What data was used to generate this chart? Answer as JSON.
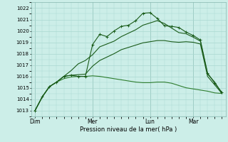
{
  "title": "",
  "xlabel": "Pression niveau de la mer( hPa )",
  "ylabel": "",
  "bg_color": "#cceee8",
  "grid_color": "#aad8d0",
  "line_color_dark": "#1a5c1a",
  "line_color_mid": "#2e7d2e",
  "ylim": [
    1012.5,
    1022.5
  ],
  "yticks": [
    1013,
    1014,
    1015,
    1016,
    1017,
    1018,
    1019,
    1020,
    1021,
    1022
  ],
  "xtick_labels": [
    "Dim",
    "Mer",
    "Lun",
    "Mar"
  ],
  "xtick_positions": [
    0,
    8,
    16,
    22
  ],
  "total_points": 27,
  "series1": [
    1013.0,
    1014.2,
    1015.1,
    1015.5,
    1016.0,
    1016.1,
    1016.0,
    1016.0,
    1018.8,
    1019.7,
    1019.5,
    1020.0,
    1020.4,
    1020.5,
    1020.9,
    1021.55,
    1021.6,
    1021.1,
    1020.45,
    1020.4,
    1020.3,
    1019.9,
    1019.6,
    1019.2,
    1016.3,
    1015.4,
    1014.6
  ],
  "series2": [
    1013.0,
    1014.2,
    1015.1,
    1015.5,
    1015.8,
    1015.95,
    1016.0,
    1016.0,
    1016.05,
    1016.0,
    1015.9,
    1015.8,
    1015.7,
    1015.6,
    1015.5,
    1015.45,
    1015.45,
    1015.5,
    1015.5,
    1015.4,
    1015.2,
    1015.0,
    1014.9,
    1014.8,
    1014.7,
    1014.55,
    1014.5
  ],
  "series3": [
    1013.0,
    1014.2,
    1015.1,
    1015.5,
    1016.0,
    1016.1,
    1016.15,
    1016.2,
    1016.9,
    1017.4,
    1017.7,
    1018.0,
    1018.35,
    1018.55,
    1018.75,
    1018.95,
    1019.05,
    1019.15,
    1019.15,
    1019.05,
    1019.0,
    1019.05,
    1019.0,
    1018.85,
    1016.0,
    1015.25,
    1014.5
  ],
  "series4": [
    1013.0,
    1014.2,
    1015.1,
    1015.5,
    1016.0,
    1016.5,
    1017.1,
    1017.4,
    1017.9,
    1018.6,
    1018.85,
    1019.1,
    1019.5,
    1019.8,
    1020.1,
    1020.5,
    1020.7,
    1020.9,
    1020.65,
    1020.25,
    1019.85,
    1019.75,
    1019.45,
    1019.1,
    1016.2,
    1015.5,
    1014.5
  ],
  "marker": "+",
  "marker_size": 3.5,
  "lw": 0.8
}
